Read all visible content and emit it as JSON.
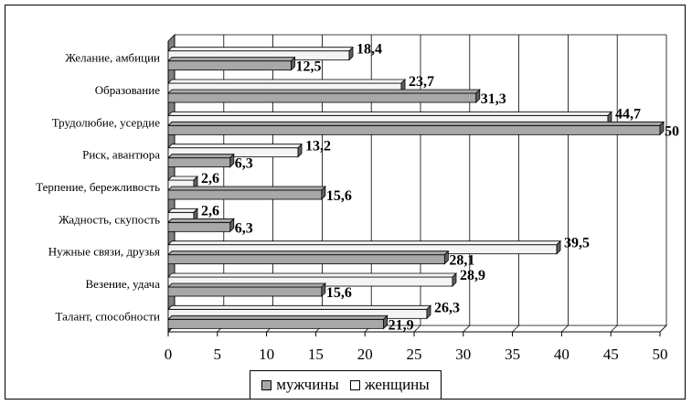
{
  "chart_data": {
    "type": "bar",
    "orientation": "horizontal",
    "categories": [
      "Желание, амбиции",
      "Образование",
      "Трудолюбие, усердие",
      "Риск, авантюра",
      "Терпение, бережливость",
      "Жадность, скупость",
      "Нужные связи, друзья",
      "Везение, удача",
      "Талант, способности"
    ],
    "series": [
      {
        "name": "мужчины",
        "values": [
          12.5,
          31.3,
          50,
          6.3,
          15.6,
          6.3,
          28.1,
          15.6,
          21.9
        ],
        "labels": [
          "12,5",
          "31,3",
          "50",
          "6,3",
          "15,6",
          "6,3",
          "28,1",
          "15,6",
          "21,9"
        ],
        "color": "#a8a8a8"
      },
      {
        "name": "женщины",
        "values": [
          18.4,
          23.7,
          44.7,
          13.2,
          2.6,
          2.6,
          39.5,
          28.9,
          26.3
        ],
        "labels": [
          "18,4",
          "23,7",
          "44,7",
          "13,2",
          "2,6",
          "2,6",
          "39,5",
          "28,9",
          "26,3"
        ],
        "color": "#f4f4f4"
      }
    ],
    "xlim": [
      0,
      50
    ],
    "xticks": [
      "0",
      "5",
      "10",
      "15",
      "20",
      "25",
      "30",
      "35",
      "40",
      "45",
      "50"
    ],
    "grid": true,
    "legend_position": "bottom",
    "title": "",
    "xlabel": "",
    "ylabel": ""
  },
  "legend": {
    "men_label": "мужчины",
    "women_label": "женщины"
  }
}
